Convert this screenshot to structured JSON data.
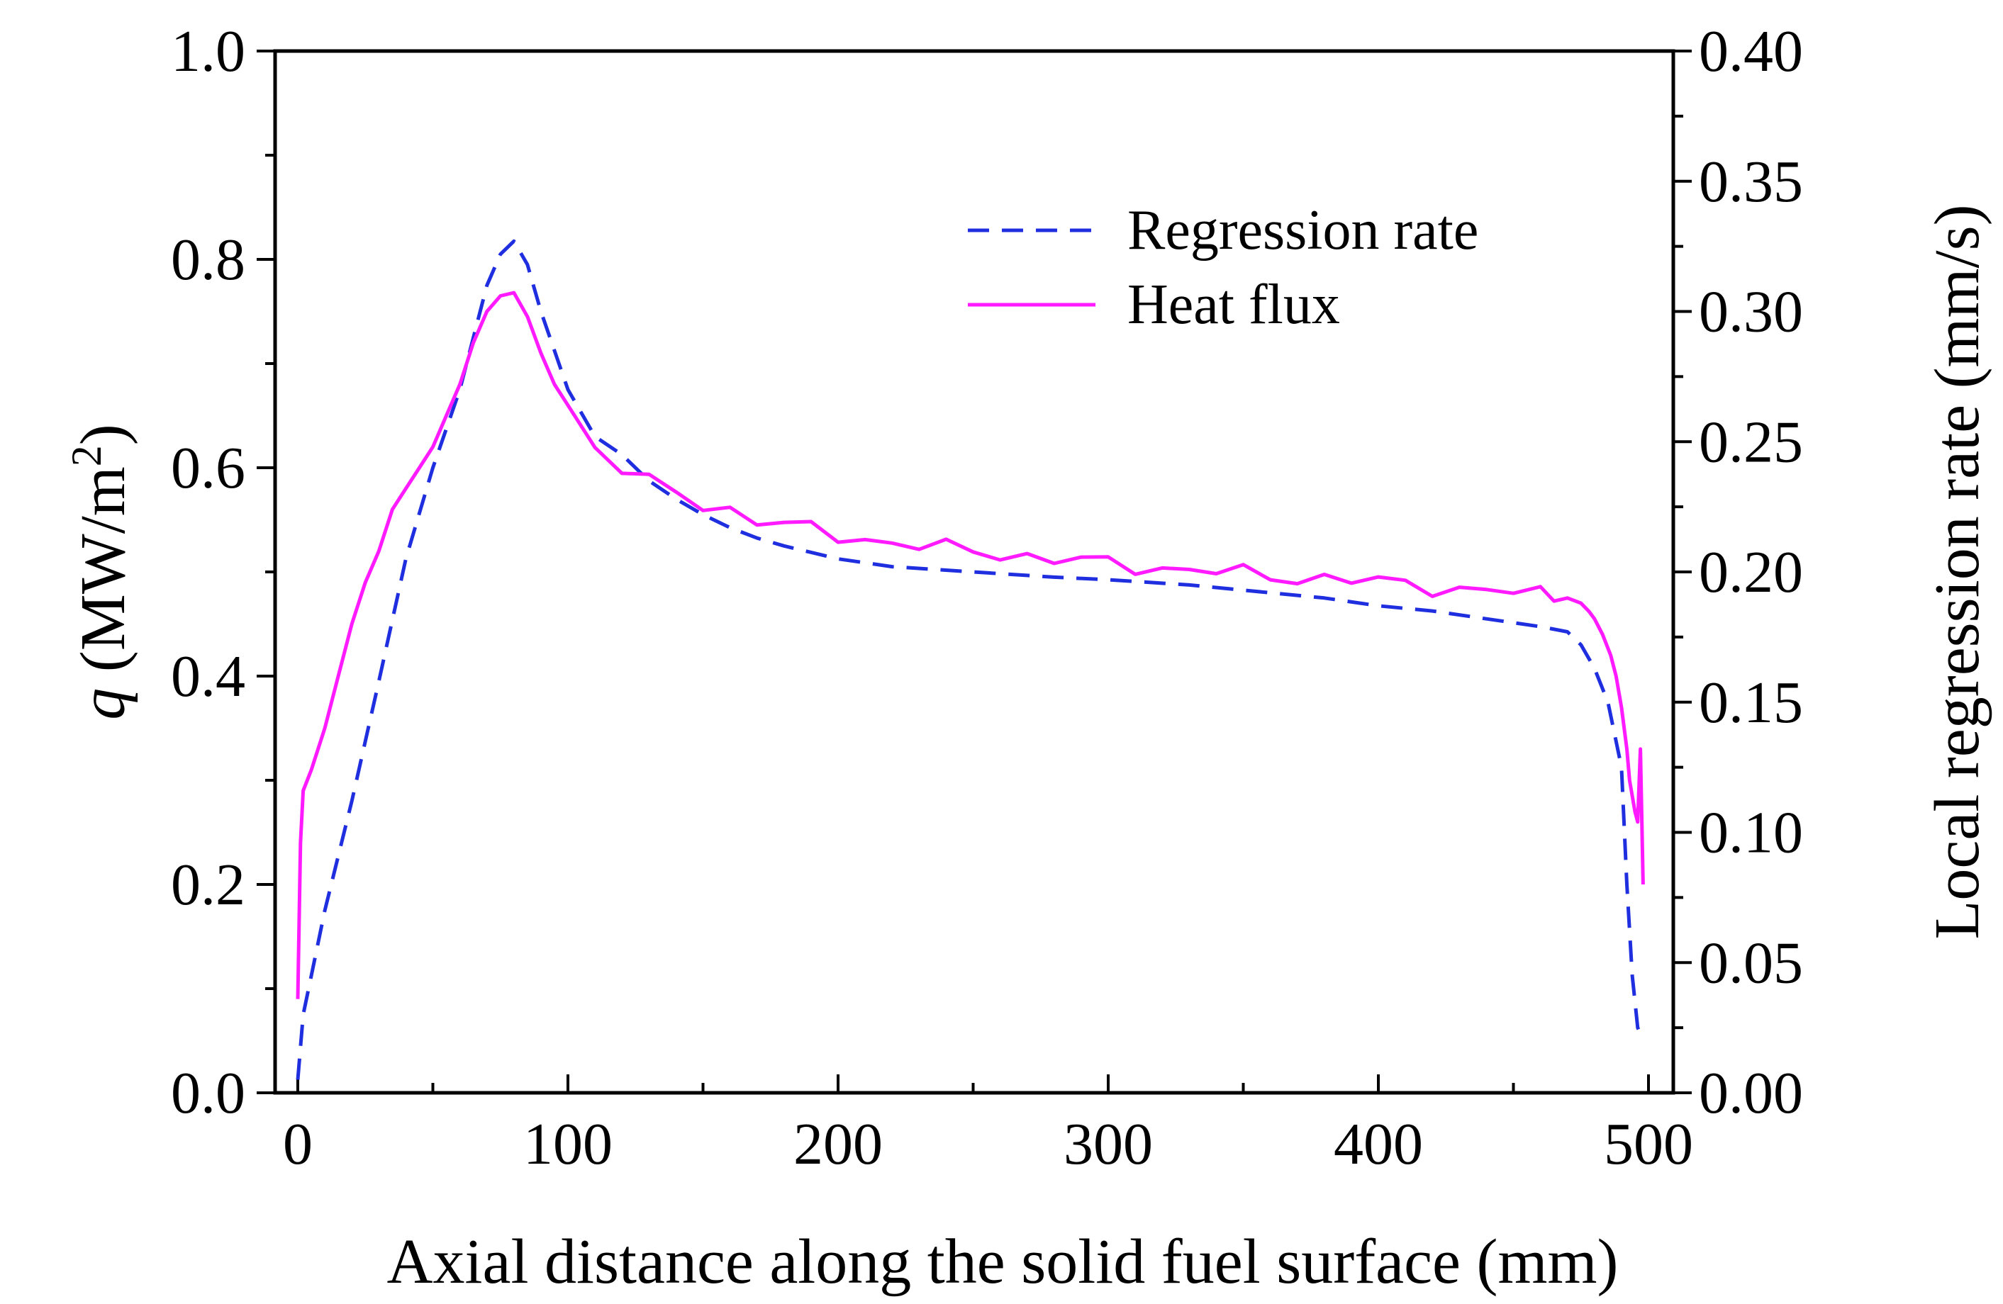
{
  "chart_data": {
    "type": "line",
    "title": "",
    "xlabel": "Axial distance along the solid fuel surface (mm)",
    "ylabel_left": {
      "symbol": "q",
      "prefix": " (MW/m",
      "superscript": "2",
      "suffix": ")"
    },
    "ylabel_right": "Local regression rate (mm/s)",
    "xlim": [
      0,
      500
    ],
    "ylim_left": [
      0.0,
      1.0
    ],
    "ylim_right": [
      0.0,
      0.4
    ],
    "x_ticks": [
      0,
      100,
      200,
      300,
      400,
      500
    ],
    "x_tick_labels": [
      "0",
      "100",
      "200",
      "300",
      "400",
      "500"
    ],
    "x_minor_step": 50,
    "y_left_ticks": [
      0.0,
      0.2,
      0.4,
      0.6,
      0.8,
      1.0
    ],
    "y_left_tick_labels": [
      "0.0",
      "0.2",
      "0.4",
      "0.6",
      "0.8",
      "1.0"
    ],
    "y_left_minor_step": 0.1,
    "y_right_ticks": [
      0.0,
      0.05,
      0.1,
      0.15,
      0.2,
      0.25,
      0.3,
      0.35,
      0.4
    ],
    "y_right_tick_labels": [
      "0.00",
      "0.05",
      "0.10",
      "0.15",
      "0.20",
      "0.25",
      "0.30",
      "0.35",
      "0.40"
    ],
    "y_right_minor_step": 0.025,
    "grid": false,
    "legend_position": "top-right",
    "series": [
      {
        "name": "Regression rate",
        "axis": "right",
        "style": "dashed",
        "color": "#1f2fe0",
        "x": [
          0,
          2,
          5,
          10,
          20,
          30,
          40,
          50,
          60,
          70,
          75,
          80,
          85,
          90,
          100,
          110,
          120,
          130,
          140,
          150,
          160,
          170,
          180,
          200,
          220,
          250,
          280,
          300,
          330,
          350,
          380,
          400,
          420,
          440,
          460,
          470,
          475,
          480,
          485,
          490,
          492,
          494,
          496,
          498
        ],
        "values": [
          0.005,
          0.03,
          0.045,
          0.07,
          0.112,
          0.158,
          0.205,
          0.24,
          0.27,
          0.31,
          0.322,
          0.327,
          0.318,
          0.3,
          0.27,
          0.252,
          0.245,
          0.235,
          0.228,
          0.222,
          0.217,
          0.213,
          0.21,
          0.205,
          0.202,
          0.2,
          0.198,
          0.197,
          0.195,
          0.193,
          0.19,
          0.187,
          0.185,
          0.182,
          0.179,
          0.177,
          0.172,
          0.163,
          0.15,
          0.125,
          0.08,
          0.045,
          0.025,
          0.02
        ]
      },
      {
        "name": "Heat flux",
        "axis": "left",
        "style": "solid",
        "color": "#ff1aff",
        "x": [
          0,
          1,
          2,
          5,
          10,
          15,
          20,
          25,
          30,
          35,
          40,
          45,
          50,
          55,
          60,
          65,
          70,
          75,
          80,
          85,
          90,
          95,
          100,
          110,
          120,
          130,
          140,
          150,
          160,
          170,
          180,
          190,
          200,
          210,
          220,
          230,
          240,
          250,
          260,
          270,
          280,
          290,
          300,
          310,
          320,
          330,
          340,
          350,
          360,
          370,
          380,
          390,
          400,
          410,
          420,
          430,
          440,
          450,
          460,
          465,
          470,
          475,
          478,
          480,
          483,
          486,
          488,
          490,
          492,
          493,
          494,
          495,
          496,
          497,
          498
        ],
        "values": [
          0.09,
          0.24,
          0.29,
          0.31,
          0.35,
          0.4,
          0.45,
          0.49,
          0.52,
          0.56,
          0.58,
          0.6,
          0.62,
          0.65,
          0.68,
          0.72,
          0.75,
          0.765,
          0.768,
          0.745,
          0.71,
          0.68,
          0.66,
          0.62,
          0.6,
          0.585,
          0.575,
          0.565,
          0.56,
          0.55,
          0.545,
          0.54,
          0.535,
          0.532,
          0.528,
          0.525,
          0.522,
          0.52,
          0.518,
          0.515,
          0.512,
          0.51,
          0.508,
          0.506,
          0.504,
          0.502,
          0.5,
          0.498,
          0.496,
          0.495,
          0.494,
          0.492,
          0.49,
          0.488,
          0.486,
          0.484,
          0.482,
          0.48,
          0.478,
          0.478,
          0.475,
          0.47,
          0.462,
          0.455,
          0.44,
          0.42,
          0.4,
          0.37,
          0.33,
          0.3,
          0.285,
          0.27,
          0.26,
          0.33,
          0.2
        ]
      }
    ]
  }
}
